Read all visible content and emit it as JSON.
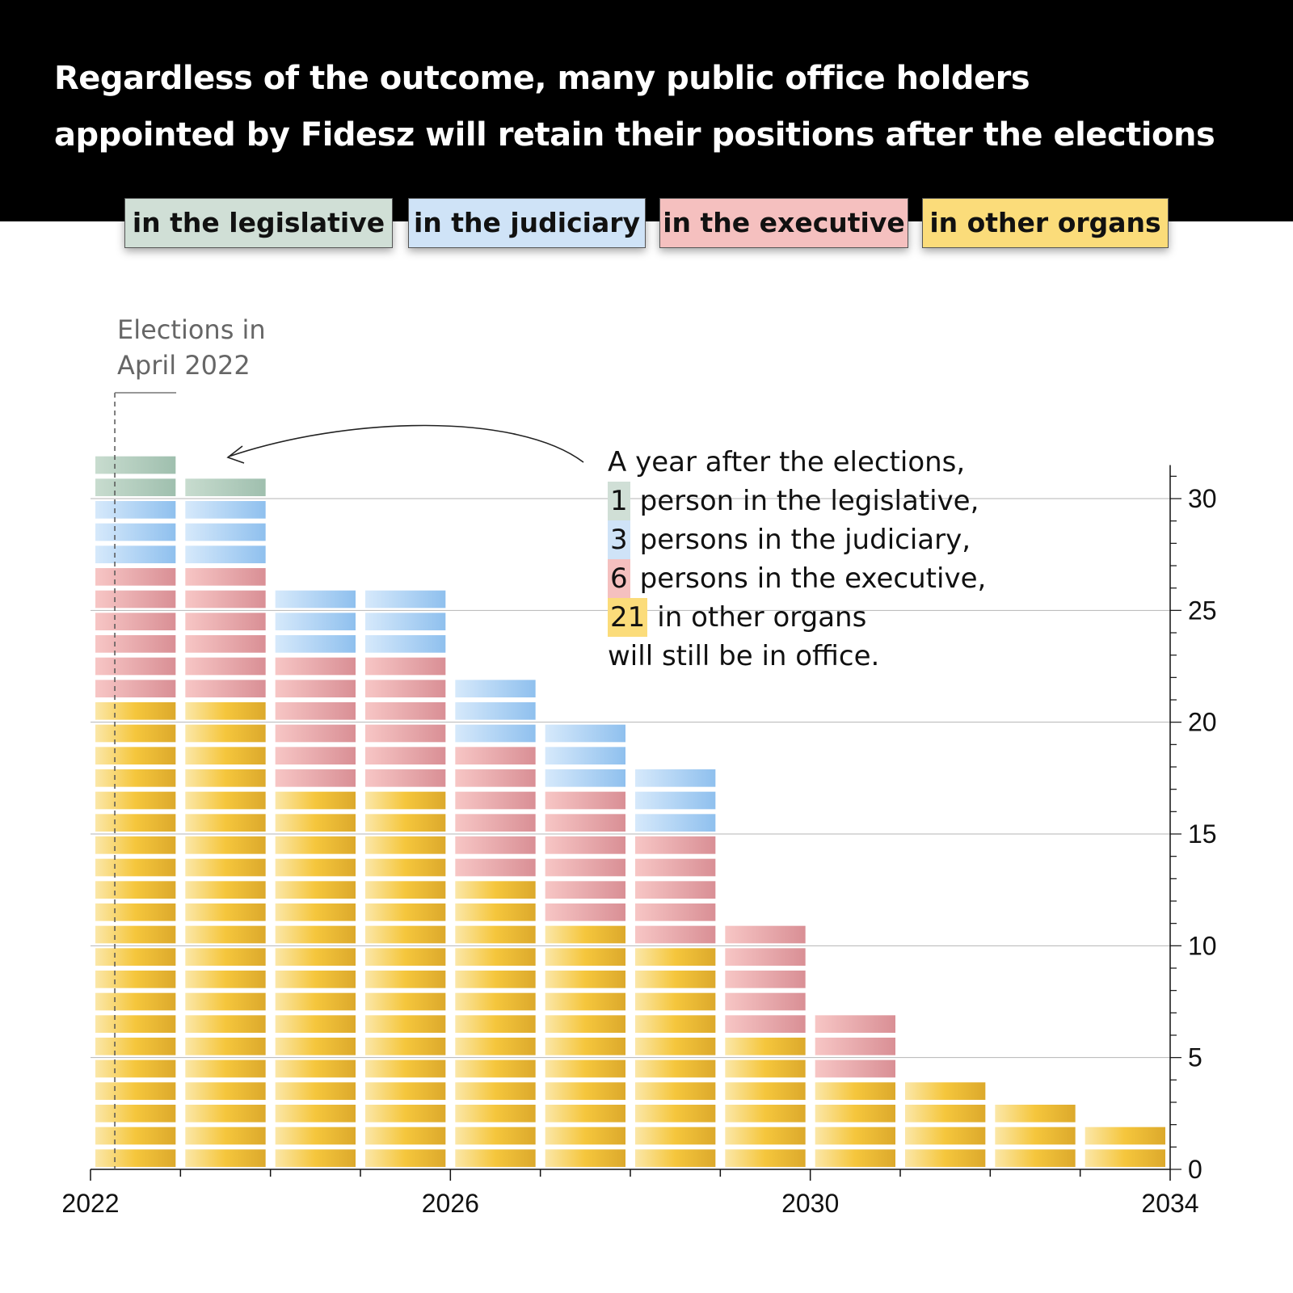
{
  "title_lines": [
    "Regardless of the outcome, many public office holders",
    "appointed by Fidesz will retain their positions after the elections"
  ],
  "legend": [
    {
      "key": "legislative",
      "label": "in the legislative",
      "color": "#d0dfd6"
    },
    {
      "key": "judiciary",
      "label": "in the judiciary",
      "color": "#cfe3f7"
    },
    {
      "key": "executive",
      "label": "in the executive",
      "color": "#f5c0bf"
    },
    {
      "key": "other",
      "label": "in other organs",
      "color": "#fbdc7a"
    }
  ],
  "election_marker": {
    "lines": [
      "Elections in",
      "April 2022"
    ]
  },
  "annotation": {
    "line1": "A year after the elections,",
    "items": [
      {
        "num": "1",
        "text": "person in the legislative,",
        "color": "#d0dfd6"
      },
      {
        "num": "3",
        "text": "persons in the judiciary,",
        "color": "#cfe3f7"
      },
      {
        "num": "6",
        "text": "persons in the executive,",
        "color": "#f5c0bf"
      },
      {
        "num": "21",
        "text": "in other organs",
        "color": "#fbdc7a"
      }
    ],
    "last_line": "will still be in office."
  },
  "chart_data": {
    "type": "bar",
    "stacked": true,
    "x_ticks": [
      "2022",
      "2026",
      "2030",
      "2034"
    ],
    "y_ticks": [
      0,
      5,
      10,
      15,
      20,
      25,
      30
    ],
    "ylim": [
      0,
      31
    ],
    "xlim": [
      2022,
      2034
    ],
    "periods": [
      {
        "start": 2022,
        "other": 21,
        "executive": 6,
        "judiciary": 3,
        "legislative": 2
      },
      {
        "start": 2023,
        "other": 21,
        "executive": 6,
        "judiciary": 3,
        "legislative": 1
      },
      {
        "start": 2024,
        "other": 17,
        "executive": 6,
        "judiciary": 3,
        "legislative": 0
      },
      {
        "start": 2025,
        "other": 17,
        "executive": 6,
        "judiciary": 3,
        "legislative": 0
      },
      {
        "start": 2026,
        "other": 13,
        "executive": 6,
        "judiciary": 3,
        "legislative": 0
      },
      {
        "start": 2027,
        "other": 11,
        "executive": 6,
        "judiciary": 3,
        "legislative": 0
      },
      {
        "start": 2028,
        "other": 10,
        "executive": 5,
        "judiciary": 3,
        "legislative": 0
      },
      {
        "start": 2029,
        "other": 6,
        "executive": 5,
        "judiciary": 0,
        "legislative": 0
      },
      {
        "start": 2030,
        "other": 4,
        "executive": 3,
        "judiciary": 0,
        "legislative": 0
      },
      {
        "start": 2031,
        "other": 4,
        "executive": 0,
        "judiciary": 0,
        "legislative": 0
      },
      {
        "start": 2032,
        "other": 3,
        "executive": 0,
        "judiciary": 0,
        "legislative": 0
      },
      {
        "start": 2033,
        "other": 2,
        "executive": 0,
        "judiciary": 0,
        "legislative": 0
      }
    ],
    "colors": {
      "legislative": [
        "#c8dccf",
        "#9fbfae"
      ],
      "judiciary": [
        "#d6e9fb",
        "#8fc0ee"
      ],
      "executive": [
        "#f7c6c5",
        "#d98f95"
      ],
      "other": [
        "#fbe7a8",
        "#f5c63c",
        "#dca92c"
      ]
    }
  }
}
